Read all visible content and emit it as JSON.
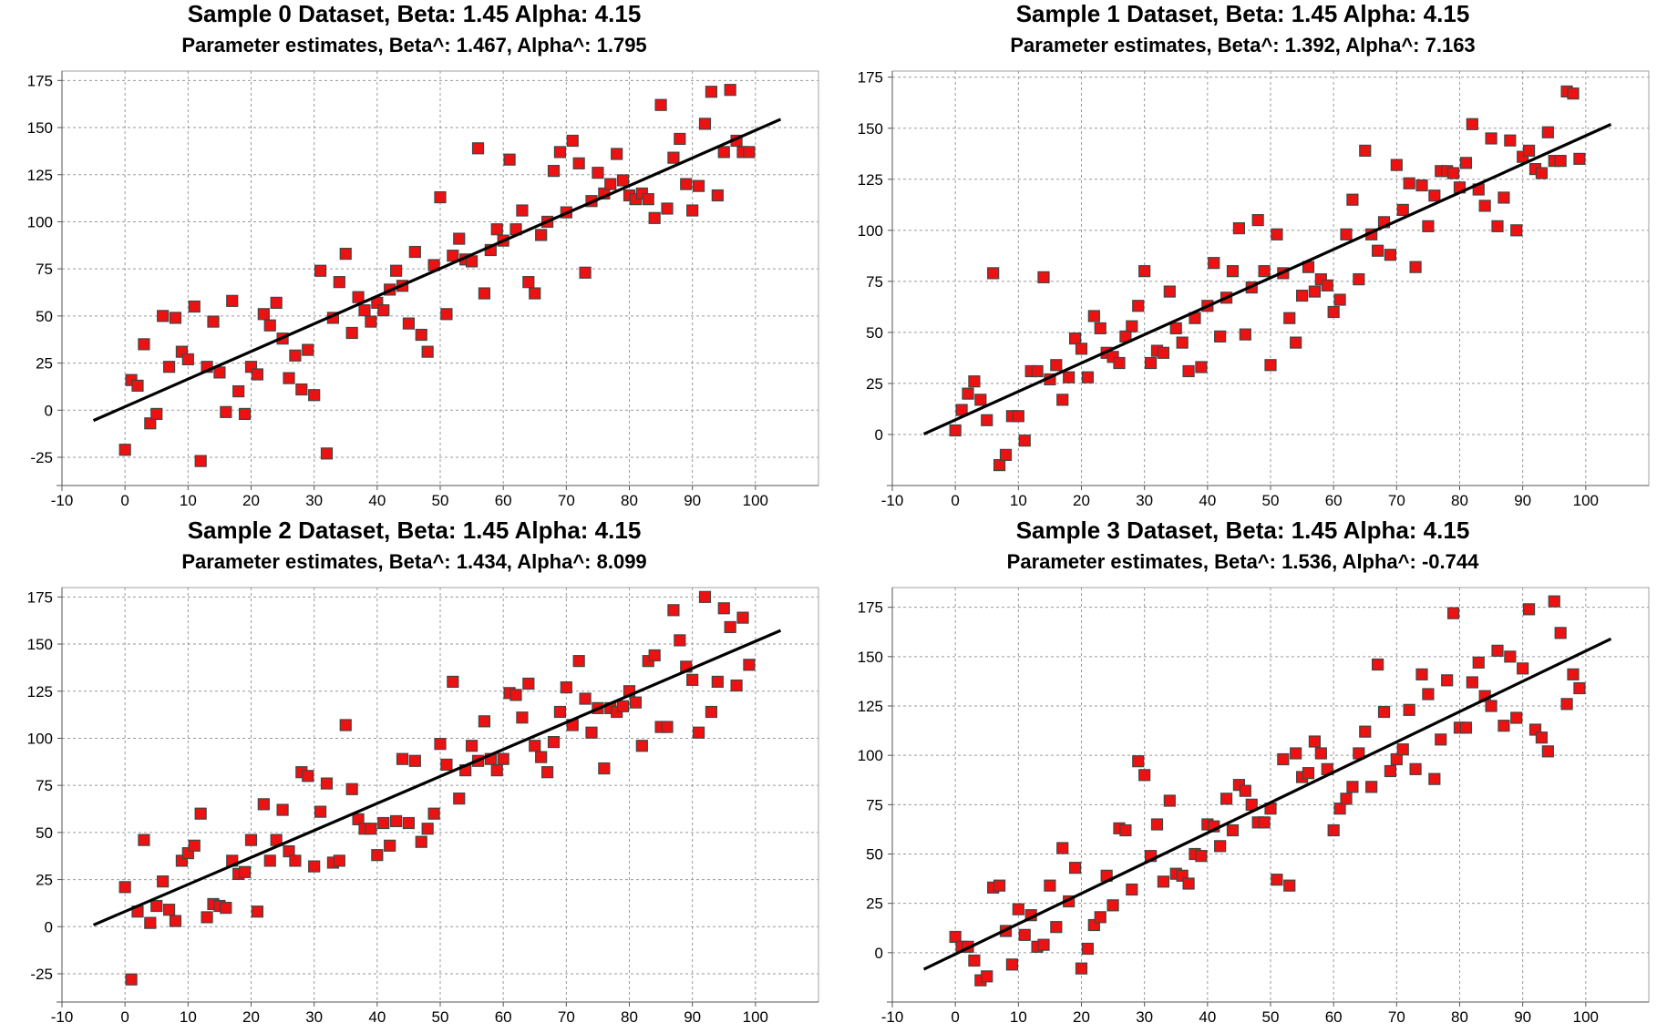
{
  "chart_data": [
    {
      "type": "scatter",
      "title": "Sample 0 Dataset, Beta: 1.45 Alpha: 4.15",
      "subtitle": "Parameter estimates, Beta^: 1.467, Alpha^: 1.795",
      "xlim": [
        -10,
        110
      ],
      "ylim": [
        -40,
        180
      ],
      "xticks": [
        -10,
        0,
        10,
        20,
        30,
        40,
        50,
        60,
        70,
        80,
        90,
        100
      ],
      "yticks": [
        -25,
        0,
        25,
        50,
        75,
        100,
        125,
        150,
        175
      ],
      "grid": true,
      "marker_color": "#ee1111",
      "line_color": "#000000",
      "fit_line": {
        "x": [
          -5,
          104
        ],
        "y": [
          -5.5,
          154.4
        ]
      },
      "points": {
        "x": [
          0,
          1,
          2,
          3,
          4,
          5,
          6,
          7,
          8,
          9,
          10,
          11,
          12,
          13,
          14,
          15,
          16,
          17,
          18,
          19,
          20,
          21,
          22,
          23,
          24,
          25,
          26,
          27,
          28,
          29,
          30,
          31,
          32,
          33,
          34,
          35,
          36,
          37,
          38,
          39,
          40,
          41,
          42,
          43,
          44,
          45,
          46,
          47,
          48,
          49,
          50,
          51,
          52,
          53,
          54,
          55,
          56,
          57,
          58,
          59,
          60,
          61,
          62,
          63,
          64,
          65,
          66,
          67,
          68,
          69,
          70,
          71,
          72,
          73,
          74,
          75,
          76,
          77,
          78,
          79,
          80,
          81,
          82,
          83,
          84,
          85,
          86,
          87,
          88,
          89,
          90,
          91,
          92,
          93,
          94,
          95,
          96,
          97,
          98,
          99
        ],
        "y": [
          -21,
          16,
          13,
          35,
          -7,
          -2,
          50,
          23,
          49,
          31,
          27,
          55,
          -27,
          23,
          47,
          20,
          -1,
          58,
          10,
          -2,
          23,
          19,
          51,
          45,
          57,
          38,
          17,
          29,
          11,
          32,
          8,
          74,
          -23,
          49,
          68,
          83,
          41,
          60,
          53,
          47,
          57,
          53,
          64,
          74,
          66,
          46,
          84,
          40,
          31,
          77,
          113,
          51,
          82,
          91,
          80,
          79,
          139,
          62,
          85,
          96,
          90,
          133,
          96,
          106,
          68,
          62,
          93,
          100,
          127,
          137,
          105,
          143,
          131,
          73,
          111,
          126,
          115,
          120,
          136,
          122,
          114,
          112,
          115,
          112,
          102,
          162,
          107,
          134,
          144,
          120,
          106,
          119,
          152,
          169,
          114,
          137,
          170,
          143,
          137,
          137
        ]
      }
    },
    {
      "type": "scatter",
      "title": "Sample 1 Dataset, Beta: 1.45 Alpha: 4.15",
      "subtitle": "Parameter estimates, Beta^: 1.392, Alpha^: 7.163",
      "xlim": [
        -10,
        110
      ],
      "ylim": [
        -25,
        178
      ],
      "xticks": [
        -10,
        0,
        10,
        20,
        30,
        40,
        50,
        60,
        70,
        80,
        90,
        100
      ],
      "yticks": [
        0,
        25,
        50,
        75,
        100,
        125,
        150,
        175
      ],
      "grid": true,
      "marker_color": "#ee1111",
      "line_color": "#000000",
      "fit_line": {
        "x": [
          -5,
          104
        ],
        "y": [
          0.2,
          151.9
        ]
      },
      "points": {
        "x": [
          0,
          1,
          2,
          3,
          4,
          5,
          6,
          7,
          8,
          9,
          10,
          11,
          12,
          13,
          14,
          15,
          16,
          17,
          18,
          19,
          20,
          21,
          22,
          23,
          24,
          25,
          26,
          27,
          28,
          29,
          30,
          31,
          32,
          33,
          34,
          35,
          36,
          37,
          38,
          39,
          40,
          41,
          42,
          43,
          44,
          45,
          46,
          47,
          48,
          49,
          50,
          51,
          52,
          53,
          54,
          55,
          56,
          57,
          58,
          59,
          60,
          61,
          62,
          63,
          64,
          65,
          66,
          67,
          68,
          69,
          70,
          71,
          72,
          73,
          74,
          75,
          76,
          77,
          78,
          79,
          80,
          81,
          82,
          83,
          84,
          85,
          86,
          87,
          88,
          89,
          90,
          91,
          92,
          93,
          94,
          95,
          96,
          97,
          98,
          99
        ],
        "y": [
          2,
          12,
          20,
          26,
          17,
          7,
          79,
          -15,
          -10,
          9,
          9,
          -3,
          31,
          31,
          77,
          27,
          34,
          17,
          28,
          47,
          42,
          28,
          58,
          52,
          40,
          38,
          35,
          48,
          53,
          63,
          80,
          35,
          41,
          40,
          70,
          52,
          45,
          31,
          57,
          33,
          63,
          84,
          48,
          67,
          80,
          101,
          49,
          72,
          105,
          80,
          34,
          98,
          79,
          57,
          45,
          68,
          82,
          70,
          76,
          73,
          60,
          66,
          98,
          115,
          76,
          139,
          98,
          90,
          104,
          88,
          132,
          110,
          123,
          82,
          122,
          102,
          117,
          129,
          129,
          128,
          121,
          133,
          152,
          120,
          112,
          145,
          102,
          116,
          144,
          100,
          136,
          139,
          130,
          128,
          148,
          134,
          134,
          168,
          167,
          135
        ]
      }
    },
    {
      "type": "scatter",
      "title": "Sample 2 Dataset, Beta: 1.45 Alpha: 4.15",
      "subtitle": "Parameter estimates, Beta^: 1.434, Alpha^: 8.099",
      "xlim": [
        -10,
        110
      ],
      "ylim": [
        -40,
        180
      ],
      "xticks": [
        -10,
        0,
        10,
        20,
        30,
        40,
        50,
        60,
        70,
        80,
        90,
        100
      ],
      "yticks": [
        -25,
        0,
        25,
        50,
        75,
        100,
        125,
        150,
        175
      ],
      "grid": true,
      "marker_color": "#ee1111",
      "line_color": "#000000",
      "fit_line": {
        "x": [
          -5,
          104
        ],
        "y": [
          0.9,
          157.2
        ]
      },
      "points": {
        "x": [
          0,
          1,
          2,
          3,
          4,
          5,
          6,
          7,
          8,
          9,
          10,
          11,
          12,
          13,
          14,
          15,
          16,
          17,
          18,
          19,
          20,
          21,
          22,
          23,
          24,
          25,
          26,
          27,
          28,
          29,
          30,
          31,
          32,
          33,
          34,
          35,
          36,
          37,
          38,
          39,
          40,
          41,
          42,
          43,
          44,
          45,
          46,
          47,
          48,
          49,
          50,
          51,
          52,
          53,
          54,
          55,
          56,
          57,
          58,
          59,
          60,
          61,
          62,
          63,
          64,
          65,
          66,
          67,
          68,
          69,
          70,
          71,
          72,
          73,
          74,
          75,
          76,
          77,
          78,
          79,
          80,
          81,
          82,
          83,
          84,
          85,
          86,
          87,
          88,
          89,
          90,
          91,
          92,
          93,
          94,
          95,
          96,
          97,
          98,
          99
        ],
        "y": [
          21,
          -28,
          8,
          46,
          2,
          11,
          24,
          9,
          3,
          35,
          39,
          43,
          60,
          5,
          12,
          11,
          10,
          35,
          28,
          29,
          46,
          8,
          65,
          35,
          46,
          62,
          40,
          35,
          82,
          80,
          32,
          61,
          76,
          34,
          35,
          107,
          73,
          57,
          52,
          52,
          38,
          55,
          43,
          56,
          89,
          55,
          88,
          45,
          52,
          60,
          97,
          86,
          130,
          68,
          83,
          96,
          88,
          109,
          89,
          83,
          89,
          124,
          123,
          111,
          129,
          96,
          90,
          82,
          98,
          114,
          127,
          107,
          141,
          121,
          103,
          116,
          84,
          116,
          114,
          117,
          125,
          119,
          96,
          141,
          144,
          106,
          106,
          168,
          152,
          138,
          131,
          103,
          175,
          114,
          130,
          169,
          159,
          128,
          164,
          139
        ]
      }
    },
    {
      "type": "scatter",
      "title": "Sample 3 Dataset, Beta: 1.45 Alpha: 4.15",
      "subtitle": "Parameter estimates, Beta^: 1.536, Alpha^: -0.744",
      "xlim": [
        -10,
        110
      ],
      "ylim": [
        -25,
        185
      ],
      "xticks": [
        -10,
        0,
        10,
        20,
        30,
        40,
        50,
        60,
        70,
        80,
        90,
        100
      ],
      "yticks": [
        0,
        25,
        50,
        75,
        100,
        125,
        150,
        175
      ],
      "grid": true,
      "marker_color": "#ee1111",
      "line_color": "#000000",
      "fit_line": {
        "x": [
          -5,
          104
        ],
        "y": [
          -8.4,
          159.0
        ]
      },
      "points": {
        "x": [
          0,
          1,
          2,
          3,
          4,
          5,
          6,
          7,
          8,
          9,
          10,
          11,
          12,
          13,
          14,
          15,
          16,
          17,
          18,
          19,
          20,
          21,
          22,
          23,
          24,
          25,
          26,
          27,
          28,
          29,
          30,
          31,
          32,
          33,
          34,
          35,
          36,
          37,
          38,
          39,
          40,
          41,
          42,
          43,
          44,
          45,
          46,
          47,
          48,
          49,
          50,
          51,
          52,
          53,
          54,
          55,
          56,
          57,
          58,
          59,
          60,
          61,
          62,
          63,
          64,
          65,
          66,
          67,
          68,
          69,
          70,
          71,
          72,
          73,
          74,
          75,
          76,
          77,
          78,
          79,
          80,
          81,
          82,
          83,
          84,
          85,
          86,
          87,
          88,
          89,
          90,
          91,
          92,
          93,
          94,
          95,
          96,
          97,
          98,
          99
        ],
        "y": [
          8,
          3,
          3,
          -4,
          -14,
          -12,
          33,
          34,
          11,
          -6,
          22,
          9,
          19,
          3,
          4,
          34,
          13,
          53,
          26,
          43,
          -8,
          2,
          14,
          18,
          39,
          24,
          63,
          62,
          32,
          97,
          90,
          49,
          65,
          36,
          77,
          40,
          39,
          35,
          50,
          49,
          65,
          64,
          54,
          78,
          62,
          85,
          82,
          75,
          66,
          66,
          73,
          37,
          98,
          34,
          101,
          89,
          91,
          107,
          101,
          93,
          62,
          73,
          78,
          84,
          101,
          112,
          84,
          146,
          122,
          92,
          98,
          103,
          123,
          93,
          141,
          131,
          88,
          108,
          138,
          172,
          114,
          114,
          137,
          147,
          130,
          125,
          153,
          115,
          150,
          119,
          144,
          174,
          113,
          109,
          102,
          178,
          162,
          126,
          141,
          134
        ]
      }
    }
  ]
}
